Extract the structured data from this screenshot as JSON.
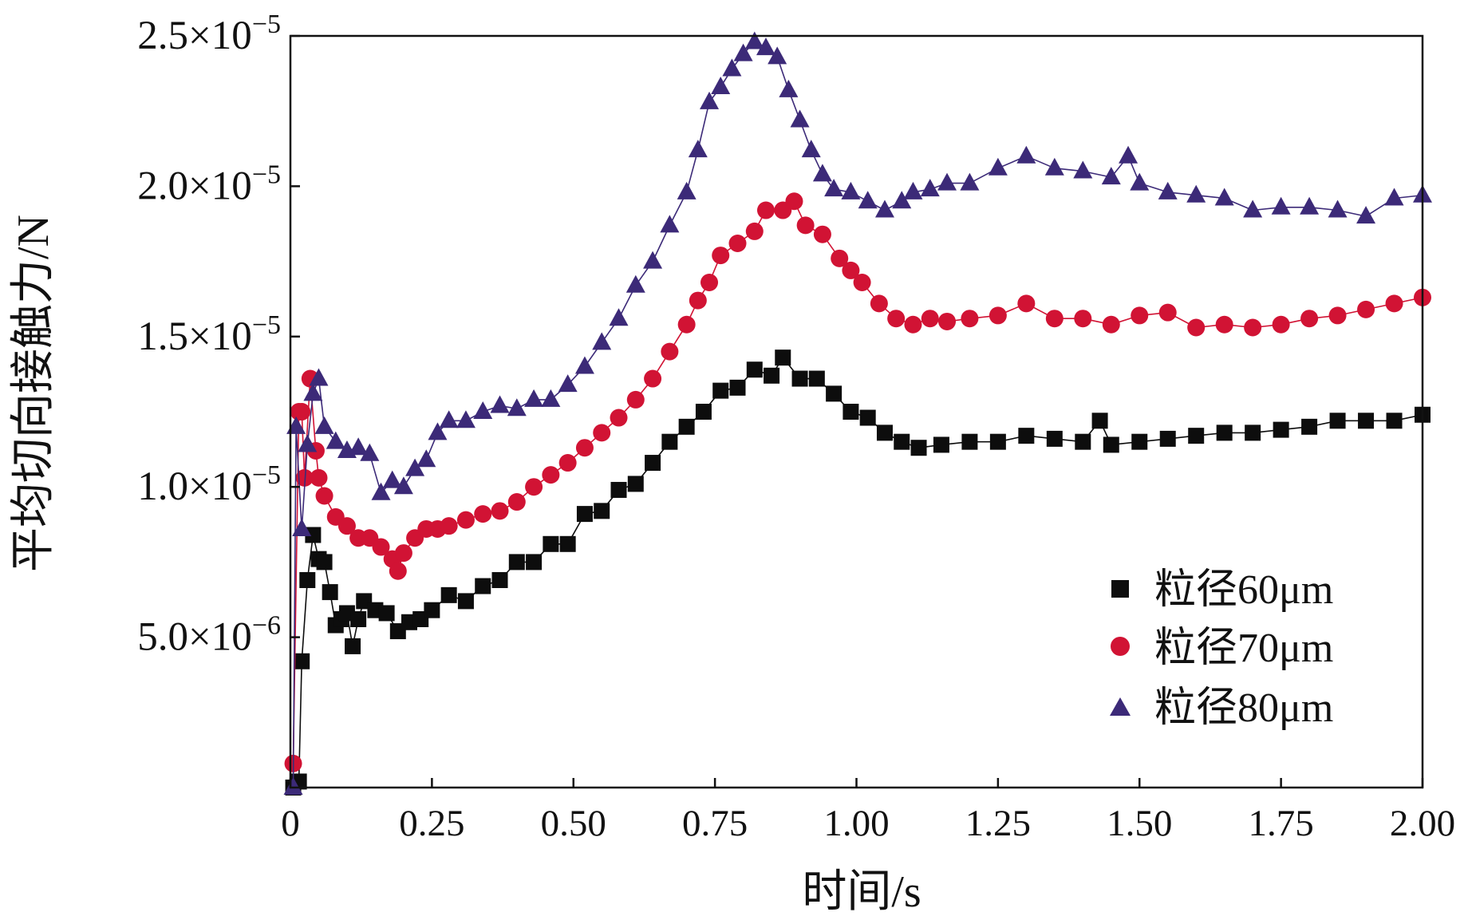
{
  "chart_data": {
    "type": "line",
    "title": "",
    "xlabel": "时间/s",
    "ylabel": "平均切向接触力/N",
    "xlim": [
      0,
      2.0
    ],
    "ylim": [
      0,
      2.5e-05
    ],
    "grid": false,
    "legend_position": "bottom-right",
    "x_ticks": [
      {
        "value": 0,
        "label": "0"
      },
      {
        "value": 0.25,
        "label": "0.25"
      },
      {
        "value": 0.5,
        "label": "0.50"
      },
      {
        "value": 0.75,
        "label": "0.75"
      },
      {
        "value": 1.0,
        "label": "1.00"
      },
      {
        "value": 1.25,
        "label": "1.25"
      },
      {
        "value": 1.5,
        "label": "1.50"
      },
      {
        "value": 1.75,
        "label": "1.75"
      },
      {
        "value": 2.0,
        "label": "2.00"
      }
    ],
    "y_ticks": [
      {
        "value": 5e-06,
        "mantissa": "5.0×10",
        "exponent": "−6"
      },
      {
        "value": 1e-05,
        "mantissa": "1.0×10",
        "exponent": "−5"
      },
      {
        "value": 1.5e-05,
        "mantissa": "1.5×10",
        "exponent": "−5"
      },
      {
        "value": 2e-05,
        "mantissa": "2.0×10",
        "exponent": "−5"
      },
      {
        "value": 2.5e-05,
        "mantissa": "2.5×10",
        "exponent": "−5"
      }
    ],
    "series": [
      {
        "name": "粒径60μm",
        "color": "#0d0d0d",
        "marker": "square",
        "points": [
          [
            0.005,
            0.0
          ],
          [
            0.015,
            2e-07
          ],
          [
            0.02,
            4.2e-06
          ],
          [
            0.03,
            6.9e-06
          ],
          [
            0.04,
            8.4e-06
          ],
          [
            0.05,
            7.6e-06
          ],
          [
            0.06,
            7.5e-06
          ],
          [
            0.07,
            6.5e-06
          ],
          [
            0.08,
            5.4e-06
          ],
          [
            0.09,
            5.6e-06
          ],
          [
            0.1,
            5.8e-06
          ],
          [
            0.11,
            4.7e-06
          ],
          [
            0.12,
            5.6e-06
          ],
          [
            0.13,
            6.2e-06
          ],
          [
            0.15,
            5.9e-06
          ],
          [
            0.17,
            5.8e-06
          ],
          [
            0.19,
            5.2e-06
          ],
          [
            0.21,
            5.5e-06
          ],
          [
            0.23,
            5.6e-06
          ],
          [
            0.25,
            5.9e-06
          ],
          [
            0.28,
            6.4e-06
          ],
          [
            0.31,
            6.2e-06
          ],
          [
            0.34,
            6.7e-06
          ],
          [
            0.37,
            6.9e-06
          ],
          [
            0.4,
            7.5e-06
          ],
          [
            0.43,
            7.5e-06
          ],
          [
            0.46,
            8.1e-06
          ],
          [
            0.49,
            8.1e-06
          ],
          [
            0.52,
            9.1e-06
          ],
          [
            0.55,
            9.2e-06
          ],
          [
            0.58,
            9.9e-06
          ],
          [
            0.61,
            1.01e-05
          ],
          [
            0.64,
            1.08e-05
          ],
          [
            0.67,
            1.15e-05
          ],
          [
            0.7,
            1.2e-05
          ],
          [
            0.73,
            1.25e-05
          ],
          [
            0.76,
            1.32e-05
          ],
          [
            0.79,
            1.33e-05
          ],
          [
            0.82,
            1.39e-05
          ],
          [
            0.85,
            1.37e-05
          ],
          [
            0.87,
            1.43e-05
          ],
          [
            0.9,
            1.36e-05
          ],
          [
            0.93,
            1.36e-05
          ],
          [
            0.96,
            1.31e-05
          ],
          [
            0.99,
            1.25e-05
          ],
          [
            1.02,
            1.23e-05
          ],
          [
            1.05,
            1.18e-05
          ],
          [
            1.08,
            1.15e-05
          ],
          [
            1.11,
            1.13e-05
          ],
          [
            1.15,
            1.14e-05
          ],
          [
            1.2,
            1.15e-05
          ],
          [
            1.25,
            1.15e-05
          ],
          [
            1.3,
            1.17e-05
          ],
          [
            1.35,
            1.16e-05
          ],
          [
            1.4,
            1.15e-05
          ],
          [
            1.43,
            1.22e-05
          ],
          [
            1.45,
            1.14e-05
          ],
          [
            1.5,
            1.15e-05
          ],
          [
            1.55,
            1.16e-05
          ],
          [
            1.6,
            1.17e-05
          ],
          [
            1.65,
            1.18e-05
          ],
          [
            1.7,
            1.18e-05
          ],
          [
            1.75,
            1.19e-05
          ],
          [
            1.8,
            1.2e-05
          ],
          [
            1.85,
            1.22e-05
          ],
          [
            1.9,
            1.22e-05
          ],
          [
            1.95,
            1.22e-05
          ],
          [
            2.0,
            1.24e-05
          ]
        ]
      },
      {
        "name": "粒径70μm",
        "color": "#d11334",
        "marker": "circle",
        "points": [
          [
            0.005,
            8e-07
          ],
          [
            0.015,
            1.25e-05
          ],
          [
            0.02,
            1.25e-05
          ],
          [
            0.025,
            1.03e-05
          ],
          [
            0.035,
            1.36e-05
          ],
          [
            0.045,
            1.12e-05
          ],
          [
            0.05,
            1.03e-05
          ],
          [
            0.06,
            9.7e-06
          ],
          [
            0.08,
            9e-06
          ],
          [
            0.1,
            8.7e-06
          ],
          [
            0.12,
            8.3e-06
          ],
          [
            0.14,
            8.3e-06
          ],
          [
            0.16,
            8e-06
          ],
          [
            0.18,
            7.6e-06
          ],
          [
            0.19,
            7.2e-06
          ],
          [
            0.2,
            7.8e-06
          ],
          [
            0.22,
            8.3e-06
          ],
          [
            0.24,
            8.6e-06
          ],
          [
            0.26,
            8.6e-06
          ],
          [
            0.28,
            8.7e-06
          ],
          [
            0.31,
            8.9e-06
          ],
          [
            0.34,
            9.1e-06
          ],
          [
            0.37,
            9.2e-06
          ],
          [
            0.4,
            9.5e-06
          ],
          [
            0.43,
            1e-05
          ],
          [
            0.46,
            1.04e-05
          ],
          [
            0.49,
            1.08e-05
          ],
          [
            0.52,
            1.13e-05
          ],
          [
            0.55,
            1.18e-05
          ],
          [
            0.58,
            1.23e-05
          ],
          [
            0.61,
            1.29e-05
          ],
          [
            0.64,
            1.36e-05
          ],
          [
            0.67,
            1.45e-05
          ],
          [
            0.7,
            1.54e-05
          ],
          [
            0.72,
            1.62e-05
          ],
          [
            0.74,
            1.68e-05
          ],
          [
            0.76,
            1.77e-05
          ],
          [
            0.79,
            1.81e-05
          ],
          [
            0.82,
            1.85e-05
          ],
          [
            0.84,
            1.92e-05
          ],
          [
            0.87,
            1.92e-05
          ],
          [
            0.89,
            1.95e-05
          ],
          [
            0.91,
            1.87e-05
          ],
          [
            0.94,
            1.84e-05
          ],
          [
            0.97,
            1.76e-05
          ],
          [
            0.99,
            1.72e-05
          ],
          [
            1.01,
            1.68e-05
          ],
          [
            1.04,
            1.61e-05
          ],
          [
            1.07,
            1.56e-05
          ],
          [
            1.1,
            1.54e-05
          ],
          [
            1.13,
            1.56e-05
          ],
          [
            1.16,
            1.55e-05
          ],
          [
            1.2,
            1.56e-05
          ],
          [
            1.25,
            1.57e-05
          ],
          [
            1.3,
            1.61e-05
          ],
          [
            1.35,
            1.56e-05
          ],
          [
            1.4,
            1.56e-05
          ],
          [
            1.45,
            1.54e-05
          ],
          [
            1.5,
            1.57e-05
          ],
          [
            1.55,
            1.58e-05
          ],
          [
            1.6,
            1.53e-05
          ],
          [
            1.65,
            1.54e-05
          ],
          [
            1.7,
            1.53e-05
          ],
          [
            1.75,
            1.54e-05
          ],
          [
            1.8,
            1.56e-05
          ],
          [
            1.85,
            1.57e-05
          ],
          [
            1.9,
            1.59e-05
          ],
          [
            1.95,
            1.61e-05
          ],
          [
            2.0,
            1.63e-05
          ]
        ]
      },
      {
        "name": "粒径80μm",
        "color": "#3c2a78",
        "marker": "triangle",
        "points": [
          [
            0.005,
            0.0
          ],
          [
            0.01,
            1.2e-05
          ],
          [
            0.02,
            8.6e-06
          ],
          [
            0.03,
            1.14e-05
          ],
          [
            0.04,
            1.31e-05
          ],
          [
            0.05,
            1.36e-05
          ],
          [
            0.06,
            1.2e-05
          ],
          [
            0.08,
            1.15e-05
          ],
          [
            0.1,
            1.12e-05
          ],
          [
            0.12,
            1.13e-05
          ],
          [
            0.14,
            1.11e-05
          ],
          [
            0.16,
            9.8e-06
          ],
          [
            0.18,
            1.02e-05
          ],
          [
            0.2,
            1e-05
          ],
          [
            0.22,
            1.06e-05
          ],
          [
            0.24,
            1.09e-05
          ],
          [
            0.26,
            1.18e-05
          ],
          [
            0.28,
            1.22e-05
          ],
          [
            0.31,
            1.22e-05
          ],
          [
            0.34,
            1.25e-05
          ],
          [
            0.37,
            1.27e-05
          ],
          [
            0.4,
            1.26e-05
          ],
          [
            0.43,
            1.29e-05
          ],
          [
            0.46,
            1.29e-05
          ],
          [
            0.49,
            1.34e-05
          ],
          [
            0.52,
            1.4e-05
          ],
          [
            0.55,
            1.48e-05
          ],
          [
            0.58,
            1.56e-05
          ],
          [
            0.61,
            1.67e-05
          ],
          [
            0.64,
            1.75e-05
          ],
          [
            0.67,
            1.87e-05
          ],
          [
            0.7,
            1.98e-05
          ],
          [
            0.72,
            2.12e-05
          ],
          [
            0.74,
            2.28e-05
          ],
          [
            0.76,
            2.33e-05
          ],
          [
            0.78,
            2.39e-05
          ],
          [
            0.8,
            2.44e-05
          ],
          [
            0.82,
            2.48e-05
          ],
          [
            0.84,
            2.46e-05
          ],
          [
            0.86,
            2.43e-05
          ],
          [
            0.88,
            2.32e-05
          ],
          [
            0.9,
            2.22e-05
          ],
          [
            0.92,
            2.12e-05
          ],
          [
            0.94,
            2.04e-05
          ],
          [
            0.96,
            1.99e-05
          ],
          [
            0.99,
            1.98e-05
          ],
          [
            1.02,
            1.95e-05
          ],
          [
            1.05,
            1.92e-05
          ],
          [
            1.08,
            1.95e-05
          ],
          [
            1.1,
            1.98e-05
          ],
          [
            1.13,
            1.99e-05
          ],
          [
            1.16,
            2.01e-05
          ],
          [
            1.2,
            2.01e-05
          ],
          [
            1.25,
            2.06e-05
          ],
          [
            1.3,
            2.1e-05
          ],
          [
            1.35,
            2.06e-05
          ],
          [
            1.4,
            2.05e-05
          ],
          [
            1.45,
            2.03e-05
          ],
          [
            1.48,
            2.1e-05
          ],
          [
            1.5,
            2.01e-05
          ],
          [
            1.55,
            1.98e-05
          ],
          [
            1.6,
            1.97e-05
          ],
          [
            1.65,
            1.96e-05
          ],
          [
            1.7,
            1.92e-05
          ],
          [
            1.75,
            1.93e-05
          ],
          [
            1.8,
            1.93e-05
          ],
          [
            1.85,
            1.92e-05
          ],
          [
            1.9,
            1.9e-05
          ],
          [
            1.95,
            1.96e-05
          ],
          [
            2.0,
            1.97e-05
          ]
        ]
      }
    ]
  }
}
